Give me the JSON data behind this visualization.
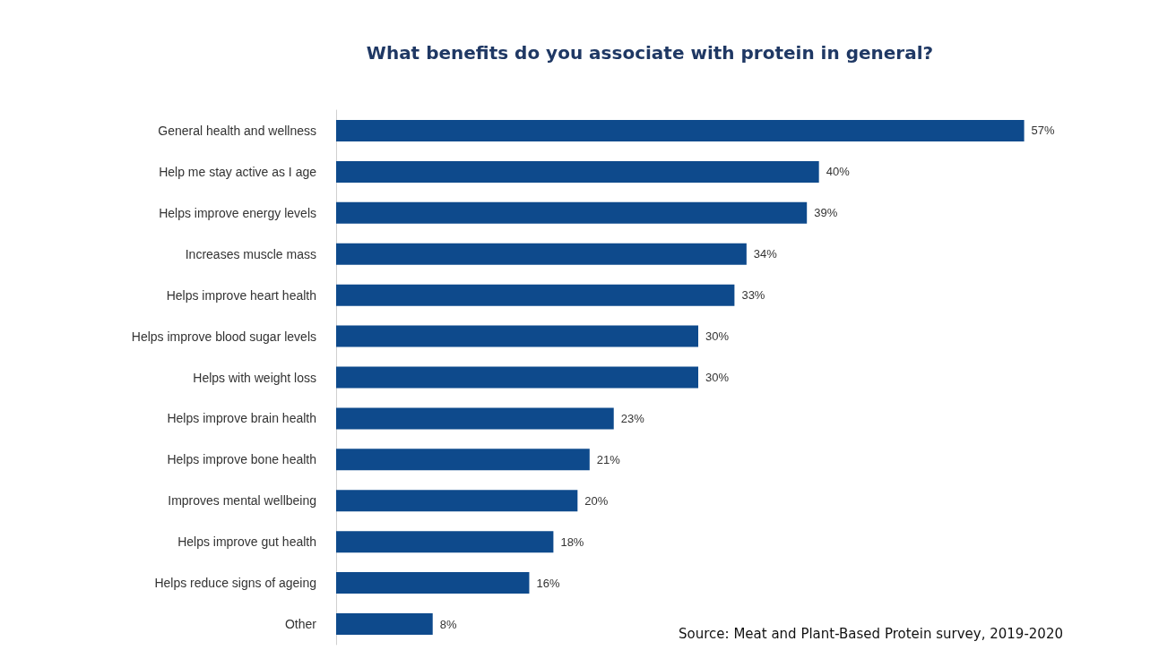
{
  "chart_data": {
    "type": "bar",
    "orientation": "horizontal",
    "title": "What benefits do you associate with protein in general?",
    "categories": [
      "General health and wellness",
      "Help me stay active as I age",
      "Helps improve energy levels",
      "Increases muscle mass",
      "Helps improve heart health",
      "Helps improve blood sugar levels",
      "Helps with weight loss",
      "Helps improve brain health",
      "Helps improve bone health",
      "Improves mental wellbeing",
      "Helps improve gut health",
      "Helps reduce signs of ageing",
      "Other"
    ],
    "values": [
      57,
      40,
      39,
      34,
      33,
      30,
      30,
      23,
      21,
      20,
      18,
      16,
      8
    ],
    "color": "#0e4a8c",
    "data_labels": true,
    "value_labels": [
      "57%",
      "40%",
      "39%",
      "34%",
      "33%",
      "30%",
      "30%",
      "23%",
      "21%",
      "20%",
      "18%",
      "16%",
      "8%"
    ],
    "annotations": [
      "Source: Meat and Plant-Based Protein survey, 2019-2020"
    ]
  }
}
